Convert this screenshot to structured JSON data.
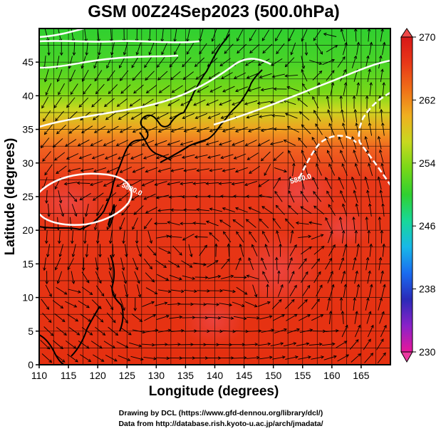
{
  "chart_data": {
    "type": "heatmap",
    "title": "GSM 00Z24Sep2023 (500.0hPa)",
    "xlabel": "Longitude (degrees)",
    "ylabel": "Latitude  (degrees)",
    "xlim": [
      110,
      170
    ],
    "ylim": [
      0,
      50
    ],
    "x_ticks": [
      "110",
      "115",
      "120",
      "125",
      "130",
      "135",
      "140",
      "145",
      "150",
      "155",
      "160",
      "165"
    ],
    "y_ticks": [
      "0",
      "5",
      "10",
      "15",
      "20",
      "25",
      "30",
      "35",
      "40",
      "45"
    ],
    "colorbar": {
      "range": [
        230,
        270
      ],
      "ticks": [
        "270",
        "262",
        "254",
        "246",
        "238",
        "230"
      ],
      "colors": [
        "#e8189a",
        "#8a22c8",
        "#2a2ab8",
        "#1a6cf0",
        "#18b8e8",
        "#18d898",
        "#30d030",
        "#78d818",
        "#c8d820",
        "#f0b020",
        "#f07018",
        "#e83818",
        "#d81818"
      ]
    },
    "field_samples": [
      {
        "lat": 48,
        "lon": 140,
        "value": 254
      },
      {
        "lat": 45,
        "lon": 125,
        "value": 256
      },
      {
        "lat": 38,
        "lon": 125,
        "value": 262
      },
      {
        "lat": 30,
        "lon": 140,
        "value": 266
      },
      {
        "lat": 27,
        "lon": 115,
        "value": 268
      },
      {
        "lat": 28,
        "lon": 157,
        "value": 268
      },
      {
        "lat": 15,
        "lon": 145,
        "value": 268
      },
      {
        "lat": 5,
        "lon": 125,
        "value": 267
      }
    ],
    "contour_labels": [
      "5880.0",
      "5880.0"
    ],
    "vortex_centres": [
      {
        "lon": 114.5,
        "lat": 26.5
      },
      {
        "lon": 113.5,
        "lat": 12
      },
      {
        "lon": 130,
        "lat": 20
      },
      {
        "lon": 138,
        "lat": 17
      },
      {
        "lon": 152,
        "lat": 31
      },
      {
        "lon": 158.5,
        "lat": 20
      },
      {
        "lon": 148,
        "lat": 10
      },
      {
        "lon": 161,
        "lat": 5
      },
      {
        "lon": 160,
        "lat": 48
      },
      {
        "lon": 127,
        "lat": 7
      }
    ]
  },
  "footer": {
    "line1": "Drawing by DCL (https://www.gfd-dennou.org/library/dcl/)",
    "line2": "Data from http://database.rish.kyoto-u.ac.jp/arch/jmadata/"
  }
}
